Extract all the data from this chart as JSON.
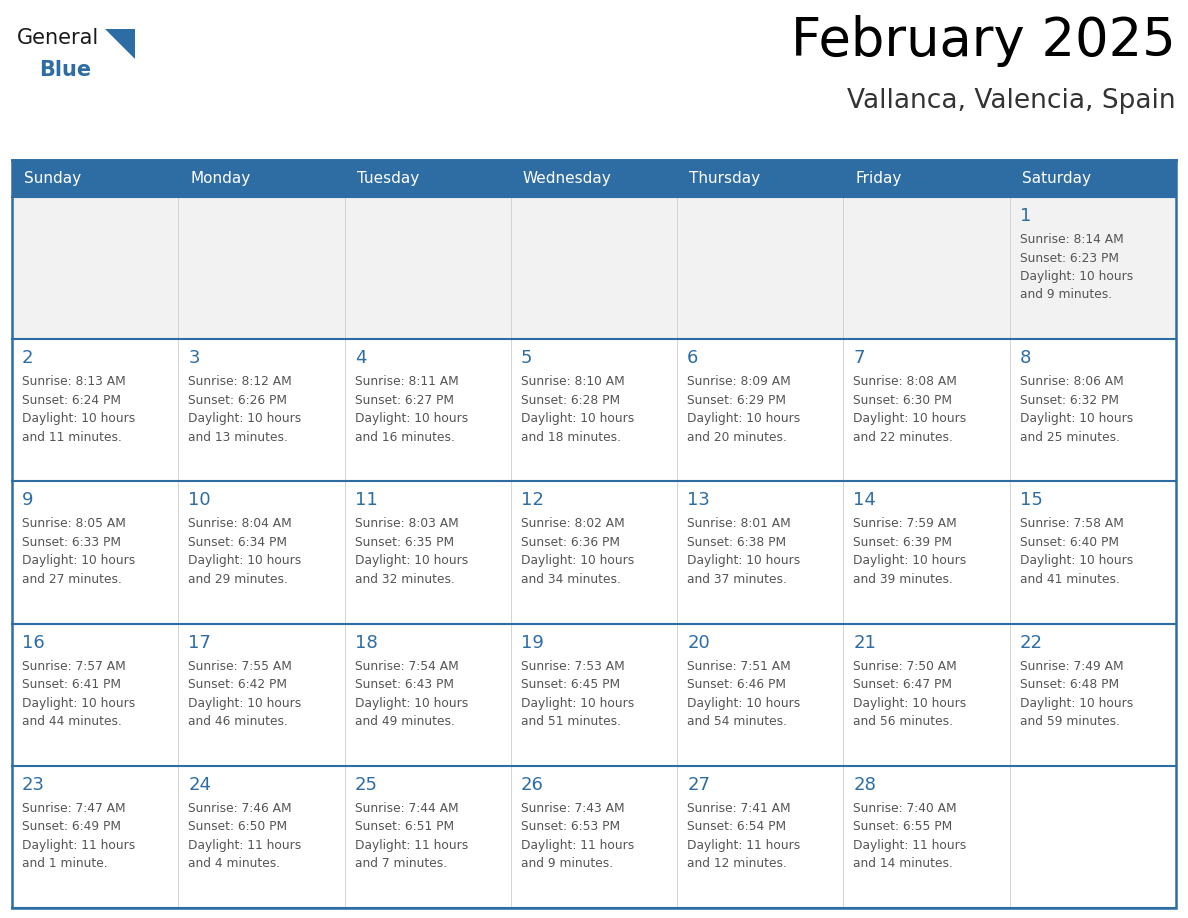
{
  "title": "February 2025",
  "subtitle": "Vallanca, Valencia, Spain",
  "header_color": "#2e6da4",
  "header_text_color": "#ffffff",
  "cell_bg_color": "#ffffff",
  "cell_alt_bg_color": "#f2f2f2",
  "border_color": "#2e6da4",
  "separator_color": "#2e6da4",
  "title_color": "#000000",
  "subtitle_color": "#333333",
  "day_number_color": "#2e6da4",
  "cell_text_color": "#555555",
  "days_of_week": [
    "Sunday",
    "Monday",
    "Tuesday",
    "Wednesday",
    "Thursday",
    "Friday",
    "Saturday"
  ],
  "calendar_data": [
    [
      null,
      null,
      null,
      null,
      null,
      null,
      {
        "day": 1,
        "sunrise": "8:14 AM",
        "sunset": "6:23 PM",
        "daylight": "10 hours and 9 minutes."
      }
    ],
    [
      {
        "day": 2,
        "sunrise": "8:13 AM",
        "sunset": "6:24 PM",
        "daylight": "10 hours and 11 minutes."
      },
      {
        "day": 3,
        "sunrise": "8:12 AM",
        "sunset": "6:26 PM",
        "daylight": "10 hours and 13 minutes."
      },
      {
        "day": 4,
        "sunrise": "8:11 AM",
        "sunset": "6:27 PM",
        "daylight": "10 hours and 16 minutes."
      },
      {
        "day": 5,
        "sunrise": "8:10 AM",
        "sunset": "6:28 PM",
        "daylight": "10 hours and 18 minutes."
      },
      {
        "day": 6,
        "sunrise": "8:09 AM",
        "sunset": "6:29 PM",
        "daylight": "10 hours and 20 minutes."
      },
      {
        "day": 7,
        "sunrise": "8:08 AM",
        "sunset": "6:30 PM",
        "daylight": "10 hours and 22 minutes."
      },
      {
        "day": 8,
        "sunrise": "8:06 AM",
        "sunset": "6:32 PM",
        "daylight": "10 hours and 25 minutes."
      }
    ],
    [
      {
        "day": 9,
        "sunrise": "8:05 AM",
        "sunset": "6:33 PM",
        "daylight": "10 hours and 27 minutes."
      },
      {
        "day": 10,
        "sunrise": "8:04 AM",
        "sunset": "6:34 PM",
        "daylight": "10 hours and 29 minutes."
      },
      {
        "day": 11,
        "sunrise": "8:03 AM",
        "sunset": "6:35 PM",
        "daylight": "10 hours and 32 minutes."
      },
      {
        "day": 12,
        "sunrise": "8:02 AM",
        "sunset": "6:36 PM",
        "daylight": "10 hours and 34 minutes."
      },
      {
        "day": 13,
        "sunrise": "8:01 AM",
        "sunset": "6:38 PM",
        "daylight": "10 hours and 37 minutes."
      },
      {
        "day": 14,
        "sunrise": "7:59 AM",
        "sunset": "6:39 PM",
        "daylight": "10 hours and 39 minutes."
      },
      {
        "day": 15,
        "sunrise": "7:58 AM",
        "sunset": "6:40 PM",
        "daylight": "10 hours and 41 minutes."
      }
    ],
    [
      {
        "day": 16,
        "sunrise": "7:57 AM",
        "sunset": "6:41 PM",
        "daylight": "10 hours and 44 minutes."
      },
      {
        "day": 17,
        "sunrise": "7:55 AM",
        "sunset": "6:42 PM",
        "daylight": "10 hours and 46 minutes."
      },
      {
        "day": 18,
        "sunrise": "7:54 AM",
        "sunset": "6:43 PM",
        "daylight": "10 hours and 49 minutes."
      },
      {
        "day": 19,
        "sunrise": "7:53 AM",
        "sunset": "6:45 PM",
        "daylight": "10 hours and 51 minutes."
      },
      {
        "day": 20,
        "sunrise": "7:51 AM",
        "sunset": "6:46 PM",
        "daylight": "10 hours and 54 minutes."
      },
      {
        "day": 21,
        "sunrise": "7:50 AM",
        "sunset": "6:47 PM",
        "daylight": "10 hours and 56 minutes."
      },
      {
        "day": 22,
        "sunrise": "7:49 AM",
        "sunset": "6:48 PM",
        "daylight": "10 hours and 59 minutes."
      }
    ],
    [
      {
        "day": 23,
        "sunrise": "7:47 AM",
        "sunset": "6:49 PM",
        "daylight": "11 hours and 1 minute."
      },
      {
        "day": 24,
        "sunrise": "7:46 AM",
        "sunset": "6:50 PM",
        "daylight": "11 hours and 4 minutes."
      },
      {
        "day": 25,
        "sunrise": "7:44 AM",
        "sunset": "6:51 PM",
        "daylight": "11 hours and 7 minutes."
      },
      {
        "day": 26,
        "sunrise": "7:43 AM",
        "sunset": "6:53 PM",
        "daylight": "11 hours and 9 minutes."
      },
      {
        "day": 27,
        "sunrise": "7:41 AM",
        "sunset": "6:54 PM",
        "daylight": "11 hours and 12 minutes."
      },
      {
        "day": 28,
        "sunrise": "7:40 AM",
        "sunset": "6:55 PM",
        "daylight": "11 hours and 14 minutes."
      },
      null
    ]
  ]
}
